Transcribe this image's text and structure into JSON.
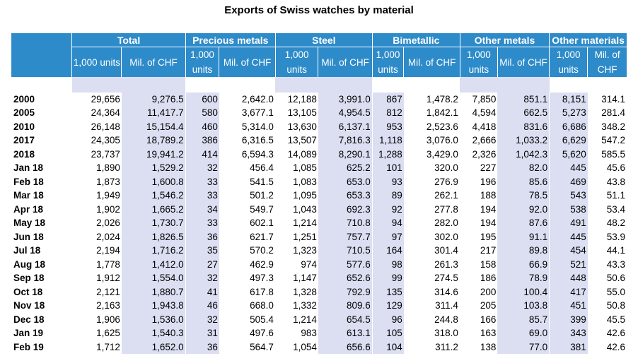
{
  "title": "Exports of Swiss watches by material",
  "groups": [
    "Total",
    "Precious metals",
    "Steel",
    "Bimetallic",
    "Other metals",
    "Other materials"
  ],
  "sub_units": "1,000 units",
  "sub_chf": "Mil. of CHF",
  "sub_chf_total": "Mil. of CHF",
  "rows": [
    {
      "label": "2000",
      "cells": [
        "29,656",
        "9,276.5",
        "600",
        "2,642.0",
        "12,188",
        "3,991.0",
        "867",
        "1,478.2",
        "7,850",
        "851.1",
        "8,151",
        "314.1"
      ]
    },
    {
      "label": "2005",
      "cells": [
        "24,364",
        "11,417.7",
        "580",
        "3,677.1",
        "13,105",
        "4,954.5",
        "812",
        "1,842.1",
        "4,594",
        "662.5",
        "5,273",
        "281.4"
      ]
    },
    {
      "label": "2010",
      "cells": [
        "26,148",
        "15,154.4",
        "460",
        "5,314.0",
        "13,630",
        "6,137.1",
        "953",
        "2,523.6",
        "4,418",
        "831.6",
        "6,686",
        "348.2"
      ]
    },
    {
      "label": "2017",
      "cells": [
        "24,305",
        "18,789.2",
        "386",
        "6,316.5",
        "13,507",
        "7,816.3",
        "1,118",
        "3,076.0",
        "2,666",
        "1,033.2",
        "6,629",
        "547.2"
      ]
    },
    {
      "label": "2018",
      "cells": [
        "23,737",
        "19,941.2",
        "414",
        "6,594.3",
        "14,089",
        "8,290.1",
        "1,288",
        "3,429.0",
        "2,326",
        "1,042.3",
        "5,620",
        "585.5"
      ]
    },
    {
      "label": "Jan 18",
      "cells": [
        "1,890",
        "1,529.2",
        "32",
        "456.4",
        "1,085",
        "625.2",
        "101",
        "320.0",
        "227",
        "82.0",
        "445",
        "45.6"
      ]
    },
    {
      "label": "Feb 18",
      "cells": [
        "1,873",
        "1,600.8",
        "33",
        "541.5",
        "1,083",
        "653.0",
        "93",
        "276.9",
        "196",
        "85.6",
        "469",
        "43.8"
      ]
    },
    {
      "label": "Mar 18",
      "cells": [
        "1,949",
        "1,546.2",
        "33",
        "501.2",
        "1,095",
        "653.3",
        "89",
        "262.1",
        "188",
        "78.5",
        "543",
        "51.1"
      ]
    },
    {
      "label": "Apr 18",
      "cells": [
        "1,902",
        "1,665.2",
        "34",
        "549.7",
        "1,043",
        "692.3",
        "92",
        "277.8",
        "194",
        "92.0",
        "538",
        "53.4"
      ]
    },
    {
      "label": "May 18",
      "cells": [
        "2,026",
        "1,730.7",
        "33",
        "602.1",
        "1,214",
        "710.8",
        "94",
        "282.0",
        "194",
        "87.6",
        "491",
        "48.2"
      ]
    },
    {
      "label": "Jun 18",
      "cells": [
        "2,024",
        "1,826.5",
        "36",
        "621.7",
        "1,251",
        "757.7",
        "97",
        "302.0",
        "195",
        "91.1",
        "445",
        "53.9"
      ]
    },
    {
      "label": "Jul 18",
      "cells": [
        "2,194",
        "1,716.2",
        "35",
        "570.2",
        "1,323",
        "710.5",
        "164",
        "301.4",
        "217",
        "89.8",
        "454",
        "44.1"
      ]
    },
    {
      "label": "Aug 18",
      "cells": [
        "1,778",
        "1,412.0",
        "27",
        "462.9",
        "974",
        "577.6",
        "98",
        "261.3",
        "158",
        "66.9",
        "521",
        "43.3"
      ]
    },
    {
      "label": "Sep 18",
      "cells": [
        "1,912",
        "1,554.0",
        "32",
        "497.3",
        "1,147",
        "652.6",
        "99",
        "274.5",
        "186",
        "78.9",
        "448",
        "50.6"
      ]
    },
    {
      "label": "Oct 18",
      "cells": [
        "2,121",
        "1,880.7",
        "41",
        "617.8",
        "1,328",
        "792.9",
        "135",
        "314.6",
        "200",
        "100.4",
        "417",
        "55.0"
      ]
    },
    {
      "label": "Nov 18",
      "cells": [
        "2,163",
        "1,943.8",
        "46",
        "668.0",
        "1,332",
        "809.6",
        "129",
        "311.4",
        "205",
        "103.8",
        "451",
        "50.8"
      ]
    },
    {
      "label": "Dec 18",
      "cells": [
        "1,906",
        "1,536.0",
        "32",
        "505.4",
        "1,214",
        "654.5",
        "96",
        "244.8",
        "166",
        "85.7",
        "399",
        "45.5"
      ]
    },
    {
      "label": "Jan 19",
      "cells": [
        "1,625",
        "1,540.3",
        "31",
        "497.6",
        "983",
        "613.1",
        "105",
        "318.0",
        "163",
        "69.0",
        "343",
        "42.6"
      ]
    },
    {
      "label": "Feb 19",
      "cells": [
        "1,712",
        "1,652.0",
        "36",
        "564.7",
        "1,054",
        "656.6",
        "104",
        "311.2",
        "138",
        "77.0",
        "381",
        "42.6"
      ]
    }
  ]
}
